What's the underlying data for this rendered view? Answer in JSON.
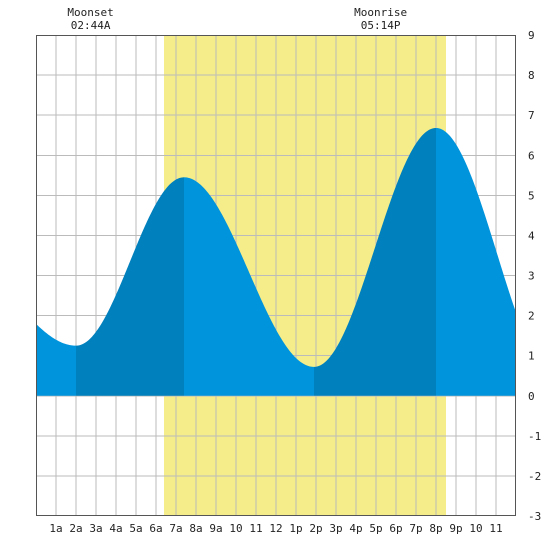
{
  "chart_data": {
    "type": "area",
    "title": "",
    "xlabel": "",
    "ylabel": "",
    "xlim": [
      0,
      24
    ],
    "ylim": [
      -3,
      9
    ],
    "grid": true,
    "x_ticks": [
      {
        "x": 1,
        "label": "1a"
      },
      {
        "x": 2,
        "label": "2a"
      },
      {
        "x": 3,
        "label": "3a"
      },
      {
        "x": 4,
        "label": "4a"
      },
      {
        "x": 5,
        "label": "5a"
      },
      {
        "x": 6,
        "label": "6a"
      },
      {
        "x": 7,
        "label": "7a"
      },
      {
        "x": 8,
        "label": "8a"
      },
      {
        "x": 9,
        "label": "9a"
      },
      {
        "x": 10,
        "label": "10"
      },
      {
        "x": 11,
        "label": "11"
      },
      {
        "x": 12,
        "label": "12"
      },
      {
        "x": 13,
        "label": "1p"
      },
      {
        "x": 14,
        "label": "2p"
      },
      {
        "x": 15,
        "label": "3p"
      },
      {
        "x": 16,
        "label": "4p"
      },
      {
        "x": 17,
        "label": "5p"
      },
      {
        "x": 18,
        "label": "6p"
      },
      {
        "x": 19,
        "label": "7p"
      },
      {
        "x": 20,
        "label": "8p"
      },
      {
        "x": 21,
        "label": "9p"
      },
      {
        "x": 22,
        "label": "10"
      },
      {
        "x": 23,
        "label": "11"
      }
    ],
    "y_ticks": [
      -3,
      -2,
      -1,
      0,
      1,
      2,
      3,
      4,
      5,
      6,
      7,
      8,
      9
    ],
    "daylight": [
      6.4,
      20.5
    ],
    "tide_extremes": [
      {
        "x": 2.0,
        "y": 1.25,
        "kind": "low"
      },
      {
        "x": 7.4,
        "y": 5.45,
        "kind": "high"
      },
      {
        "x": 13.9,
        "y": 0.72,
        "kind": "low"
      },
      {
        "x": 20.0,
        "y": 6.68,
        "kind": "high"
      }
    ],
    "series": [
      {
        "type": "area",
        "x": [
          0,
          1,
          2,
          3,
          4,
          5,
          6,
          7,
          7.4,
          8,
          9,
          10,
          11,
          12,
          13,
          13.9,
          15,
          16,
          17,
          18,
          19,
          20,
          21,
          22,
          23,
          24
        ],
        "values": [
          2.4,
          1.6,
          1.25,
          1.7,
          2.8,
          4.1,
          5.0,
          5.4,
          5.45,
          5.2,
          4.3,
          3.0,
          1.8,
          1.0,
          0.75,
          0.72,
          1.4,
          2.9,
          4.4,
          5.7,
          6.5,
          6.68,
          6.4,
          5.5,
          4.5,
          3.3
        ]
      }
    ],
    "annotations": [
      {
        "x": 2.73,
        "label": "Moonset",
        "time": "02:44A"
      },
      {
        "x": 17.23,
        "label": "Moonrise",
        "time": "05:14P"
      }
    ],
    "colors": {
      "tide_light": "#0094dc",
      "tide_dark": "#0080bd",
      "daylight": "#f5ed8a",
      "grid": "#bbbbbb",
      "border": "#555555"
    }
  }
}
